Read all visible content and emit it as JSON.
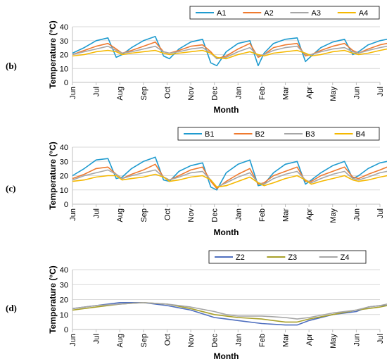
{
  "chart_data": [
    {
      "type": "line",
      "panel_label": "(b)",
      "ylabel": "Temperature (°C)",
      "xlabel": "Month",
      "ylim": [
        0,
        40
      ],
      "yticks": [
        0,
        10,
        20,
        30,
        40
      ],
      "xticks": [
        "Jun",
        "Jul",
        "Aug",
        "Sep",
        "Oct",
        "Nov",
        "Dec",
        "Jan",
        "Feb",
        "Mar",
        "Apr",
        "May",
        "Jun",
        "Jul"
      ],
      "legend": "top-right",
      "x": [
        0.0,
        0.5,
        1.0,
        1.5,
        1.85,
        2.1,
        2.5,
        3.0,
        3.5,
        3.85,
        4.1,
        4.5,
        5.0,
        5.5,
        5.85,
        6.1,
        6.5,
        7.0,
        7.5,
        7.85,
        8.1,
        8.5,
        9.0,
        9.5,
        9.85,
        10.1,
        10.5,
        11.0,
        11.5,
        11.85,
        12.1,
        12.5,
        13.0,
        13.3
      ],
      "series": [
        {
          "name": "A1",
          "color": "#1f9bcf",
          "values": [
            21,
            25,
            30,
            32,
            18,
            20,
            25,
            30,
            33,
            19,
            17,
            24,
            29,
            31,
            14,
            12,
            22,
            28,
            30,
            12,
            21,
            28,
            31,
            32,
            15,
            19,
            25,
            29,
            31,
            20,
            22,
            27,
            30,
            31
          ]
        },
        {
          "name": "A2",
          "color": "#ef7a2f",
          "values": [
            20,
            23,
            26,
            28,
            24,
            21,
            23,
            26,
            29,
            22,
            21,
            23,
            26,
            27,
            22,
            17,
            19,
            24,
            28,
            18,
            20,
            25,
            27,
            28,
            19,
            20,
            23,
            26,
            28,
            23,
            21,
            24,
            27,
            28
          ]
        },
        {
          "name": "A3",
          "color": "#a6a6a6",
          "values": [
            20,
            22,
            24,
            26,
            23,
            21,
            22,
            24,
            26,
            22,
            21,
            22,
            24,
            25,
            21,
            17,
            18,
            22,
            25,
            19,
            20,
            23,
            25,
            26,
            20,
            20,
            22,
            24,
            25,
            22,
            21,
            23,
            25,
            26
          ]
        },
        {
          "name": "A4",
          "color": "#f5b800",
          "values": [
            19,
            20,
            22,
            23,
            22,
            20,
            21,
            22,
            23,
            21,
            20,
            21,
            22,
            23,
            21,
            18,
            17,
            20,
            22,
            20,
            19,
            21,
            22,
            23,
            21,
            19,
            20,
            22,
            23,
            21,
            20,
            21,
            23,
            24
          ]
        }
      ]
    },
    {
      "type": "line",
      "panel_label": "(c)",
      "ylabel": "Temperature (°C)",
      "xlabel": "Month",
      "ylim": [
        0,
        40
      ],
      "yticks": [
        0,
        10,
        20,
        30,
        40
      ],
      "xticks": [
        "Jun",
        "Jul",
        "Aug",
        "Sep",
        "Oct",
        "Nov",
        "Dec",
        "Jan",
        "Feb",
        "Mar",
        "Apr",
        "May",
        "Jun",
        "Jul"
      ],
      "legend": "top-right",
      "x": [
        0.0,
        0.5,
        1.0,
        1.5,
        1.85,
        2.1,
        2.5,
        3.0,
        3.5,
        3.85,
        4.1,
        4.5,
        5.0,
        5.5,
        5.85,
        6.1,
        6.5,
        7.0,
        7.5,
        7.85,
        8.1,
        8.5,
        9.0,
        9.5,
        9.85,
        10.1,
        10.5,
        11.0,
        11.5,
        11.85,
        12.1,
        12.5,
        13.0,
        13.3
      ],
      "series": [
        {
          "name": "B1",
          "color": "#1f9bcf",
          "values": [
            20,
            25,
            31,
            32,
            18,
            19,
            25,
            30,
            33,
            17,
            16,
            23,
            27,
            29,
            12,
            10,
            22,
            28,
            31,
            13,
            14,
            22,
            28,
            30,
            14,
            17,
            22,
            27,
            30,
            18,
            20,
            25,
            29,
            30
          ]
        },
        {
          "name": "B2",
          "color": "#ef7a2f",
          "values": [
            18,
            21,
            25,
            26,
            21,
            18,
            21,
            24,
            28,
            19,
            17,
            20,
            24,
            26,
            16,
            11,
            16,
            21,
            25,
            14,
            15,
            20,
            23,
            26,
            16,
            16,
            20,
            23,
            26,
            19,
            18,
            21,
            24,
            26
          ]
        },
        {
          "name": "B3",
          "color": "#a6a6a6",
          "values": [
            17,
            20,
            22,
            24,
            21,
            18,
            20,
            22,
            24,
            19,
            17,
            19,
            22,
            23,
            17,
            12,
            15,
            19,
            22,
            15,
            14,
            18,
            21,
            23,
            17,
            15,
            18,
            21,
            23,
            18,
            17,
            19,
            22,
            23
          ]
        },
        {
          "name": "B4",
          "color": "#f5b800",
          "values": [
            16,
            17,
            19,
            20,
            20,
            17,
            18,
            19,
            21,
            19,
            16,
            17,
            19,
            20,
            17,
            12,
            13,
            16,
            19,
            15,
            13,
            15,
            18,
            20,
            17,
            14,
            16,
            18,
            20,
            17,
            16,
            17,
            19,
            20
          ]
        }
      ]
    },
    {
      "type": "line",
      "panel_label": "(d)",
      "ylabel": "Temperature (°C)",
      "xlabel": "Month",
      "ylim": [
        0,
        40
      ],
      "yticks": [
        0,
        10,
        20,
        30,
        40
      ],
      "xticks": [
        "Jun",
        "Jul",
        "Aug",
        "Sep",
        "Oct",
        "Nov",
        "Dec",
        "Jan",
        "Feb",
        "Mar",
        "Apr",
        "May",
        "Jun",
        "Jul"
      ],
      "legend": "top-right",
      "x": [
        0.0,
        1.0,
        2.0,
        2.5,
        3.0,
        4.0,
        5.0,
        6.0,
        6.5,
        7.0,
        8.0,
        9.0,
        9.5,
        10.0,
        11.0,
        12.0,
        12.5,
        13.0,
        13.3
      ],
      "series": [
        {
          "name": "Z2",
          "color": "#4f6fbf",
          "values": [
            14,
            16,
            18,
            18,
            18,
            16,
            13,
            8,
            7,
            6,
            4,
            3,
            3,
            6,
            10,
            12,
            15,
            16,
            16
          ]
        },
        {
          "name": "Z3",
          "color": "#a8a02a",
          "values": [
            13,
            15,
            17,
            17.5,
            18,
            17,
            14,
            10,
            9,
            8,
            7,
            5,
            5,
            7,
            10,
            13,
            14,
            15,
            16
          ]
        },
        {
          "name": "Z4",
          "color": "#a6a6a6",
          "values": [
            14,
            16,
            17,
            17.5,
            18,
            17,
            15,
            12,
            10,
            9,
            9,
            8,
            7,
            8,
            11,
            13,
            15,
            16,
            17
          ]
        }
      ]
    }
  ]
}
